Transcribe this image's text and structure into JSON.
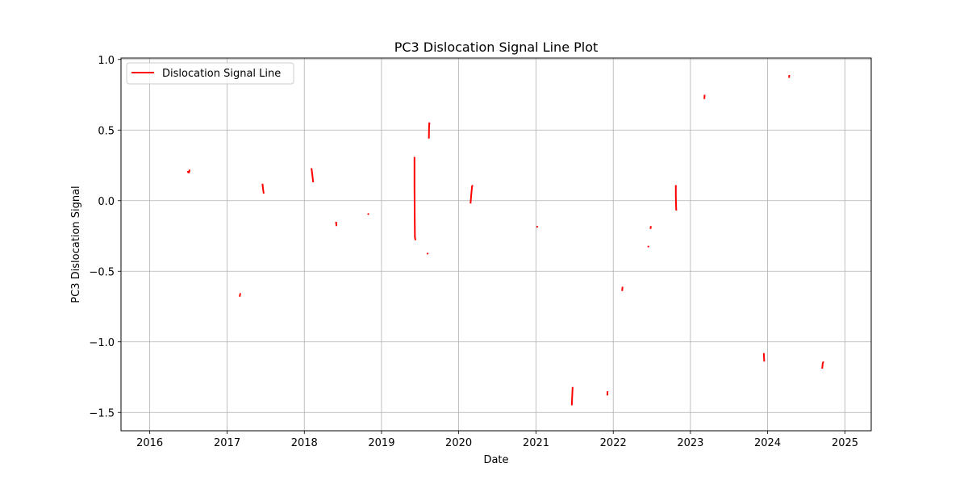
{
  "chart_data": {
    "type": "line",
    "title": "PC3 Dislocation Signal Line Plot",
    "xlabel": "Date",
    "ylabel": "PC3 Dislocation Signal",
    "xlim": [
      "2015-08-18",
      "2025-05-05"
    ],
    "ylim": [
      -1.63,
      1.01
    ],
    "x_ticks": [
      "2016",
      "2017",
      "2018",
      "2019",
      "2020",
      "2021",
      "2022",
      "2023",
      "2024",
      "2025"
    ],
    "y_ticks": [
      "1.0",
      "0.5",
      "0.0",
      "−0.5",
      "−1.0",
      "−1.5"
    ],
    "y_tick_values": [
      1.0,
      0.5,
      0.0,
      -0.5,
      -1.0,
      -1.5
    ],
    "grid": true,
    "legend_position": "top-left",
    "series": [
      {
        "name": "Dislocation Signal Line",
        "color": "#ff0000",
        "segments": [
          [
            [
              "2016-06-28",
              0.21
            ],
            [
              "2016-07-01",
              0.2
            ],
            [
              "2016-07-05",
              0.2
            ],
            [
              "2016-07-08",
              0.22
            ]
          ],
          [
            [
              "2017-03-01",
              -0.68
            ],
            [
              "2017-03-04",
              -0.66
            ],
            [
              "2017-03-07",
              -0.66
            ]
          ],
          [
            [
              "2017-06-17",
              0.12
            ],
            [
              "2017-06-20",
              0.08
            ],
            [
              "2017-06-23",
              0.05
            ]
          ],
          [
            [
              "2018-02-04",
              0.23
            ],
            [
              "2018-02-08",
              0.18
            ],
            [
              "2018-02-12",
              0.13
            ]
          ],
          [
            [
              "2018-05-31",
              -0.15
            ],
            [
              "2018-06-02",
              -0.18
            ]
          ],
          [
            [
              "2018-10-29",
              -0.1
            ],
            [
              "2018-11-01",
              -0.09
            ]
          ],
          [
            [
              "2019-06-06",
              0.31
            ],
            [
              "2019-06-06",
              0.1
            ],
            [
              "2019-06-07",
              -0.1
            ],
            [
              "2019-06-08",
              -0.26
            ],
            [
              "2019-06-11",
              -0.28
            ]
          ],
          [
            [
              "2019-08-06",
              -0.37
            ],
            [
              "2019-08-08",
              -0.38
            ]
          ],
          [
            [
              "2019-08-13",
              0.44
            ],
            [
              "2019-08-14",
              0.52
            ],
            [
              "2019-08-15",
              0.55
            ],
            [
              "2019-08-17",
              0.54
            ]
          ],
          [
            [
              "2020-02-26",
              -0.02
            ],
            [
              "2020-03-01",
              0.05
            ],
            [
              "2020-03-04",
              0.1
            ],
            [
              "2020-03-07",
              0.11
            ]
          ],
          [
            [
              "2021-01-05",
              -0.19
            ],
            [
              "2021-01-08",
              -0.18
            ]
          ],
          [
            [
              "2021-06-19",
              -1.45
            ],
            [
              "2021-06-21",
              -1.38
            ],
            [
              "2021-06-23",
              -1.32
            ]
          ],
          [
            [
              "2021-12-04",
              -1.38
            ],
            [
              "2021-12-05",
              -1.35
            ]
          ],
          [
            [
              "2022-02-12",
              -0.64
            ],
            [
              "2022-02-14",
              -0.61
            ]
          ],
          [
            [
              "2022-06-15",
              -0.33
            ],
            [
              "2022-06-17",
              -0.32
            ]
          ],
          [
            [
              "2022-06-26",
              -0.2
            ],
            [
              "2022-06-28",
              -0.18
            ]
          ],
          [
            [
              "2022-10-24",
              0.11
            ],
            [
              "2022-10-24",
              0.03
            ],
            [
              "2022-10-25",
              -0.03
            ],
            [
              "2022-10-26",
              -0.07
            ]
          ],
          [
            [
              "2023-03-08",
              0.72
            ],
            [
              "2023-03-09",
              0.75
            ]
          ],
          [
            [
              "2024-04-11",
              0.87
            ],
            [
              "2024-04-13",
              0.89
            ]
          ],
          [
            [
              "2023-12-14",
              -1.08
            ],
            [
              "2023-12-16",
              -1.14
            ]
          ],
          [
            [
              "2024-09-15",
              -1.19
            ],
            [
              "2024-09-18",
              -1.15
            ],
            [
              "2024-09-22",
              -1.14
            ]
          ]
        ]
      }
    ]
  }
}
